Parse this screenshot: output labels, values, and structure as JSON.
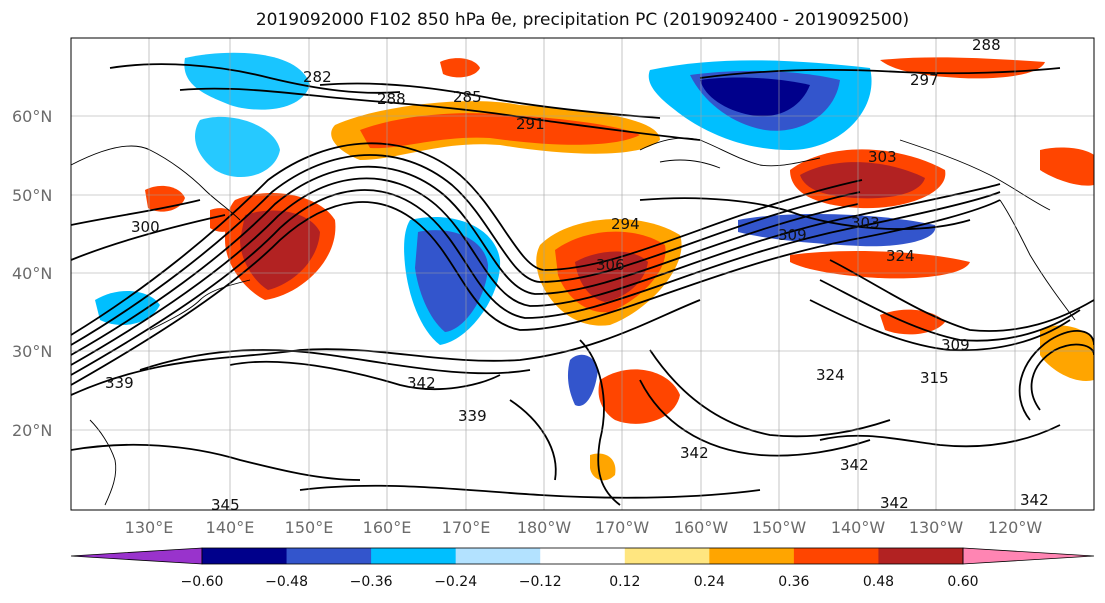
{
  "title_text": "2019092000 F102 850 hPa θe, precipitation PC (2019092400 - 2019092500)",
  "map": {
    "lat_labels": [
      "60°N",
      "50°N",
      "40°N",
      "30°N",
      "20°N"
    ],
    "lon_labels": [
      "130°E",
      "140°E",
      "150°E",
      "160°E",
      "170°E",
      "180°W",
      "170°W",
      "160°W",
      "150°W",
      "140°W",
      "130°W",
      "120°W"
    ],
    "contour_labels": [
      "282",
      "288",
      "285",
      "291",
      "297",
      "288",
      "300",
      "294",
      "306",
      "303",
      "309",
      "303",
      "324",
      "309",
      "339",
      "342",
      "339",
      "342",
      "324",
      "315",
      "342",
      "345",
      "342",
      "342"
    ],
    "field": "850 hPa θe",
    "shading": "precipitation PC"
  },
  "colorbar": {
    "tick_labels": [
      "−0.60",
      "−0.48",
      "−0.36",
      "−0.24",
      "−0.12",
      "0.12",
      "0.24",
      "0.36",
      "0.48",
      "0.60"
    ],
    "colors": [
      "#9933cc",
      "#00008b",
      "#3355cc",
      "#00bfff",
      "#b3e2ff",
      "#ffffff",
      "#ffe680",
      "#ffa500",
      "#ff4500",
      "#b22222",
      "#ff85b3"
    ]
  }
}
